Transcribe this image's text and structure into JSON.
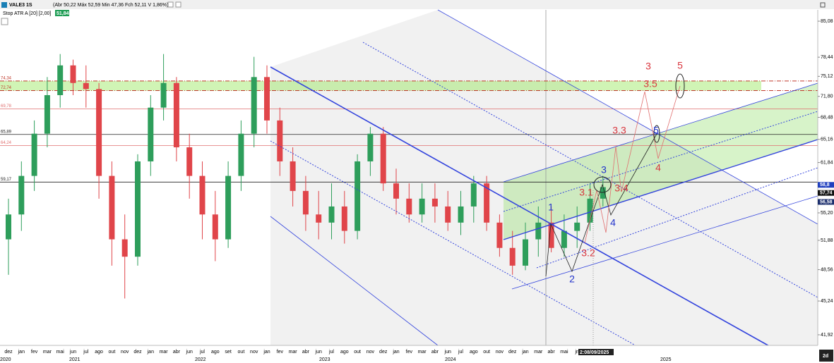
{
  "header": {
    "symbol": "VALE3 1S",
    "quote": "(Abr 50,22 Máx 52,59 Min 47,36 Fch 52,11 V 1,86%)",
    "indicator": "Stop ATR A [20] [2,00]",
    "indicator_value": "51,84",
    "cursor_date": "2:08/09/2025",
    "timeframe": "2d"
  },
  "chart_data": {
    "type": "candlestick",
    "log": true,
    "up_color": "#2e9e5b",
    "down_color": "#e0454a",
    "categories": [
      "dez",
      "jan",
      "fev",
      "mar",
      "mai",
      "jun",
      "jul",
      "ago",
      "out",
      "nov",
      "dez",
      "jan",
      "mar",
      "abr",
      "jun",
      "jul",
      "ago",
      "set",
      "out",
      "nov",
      "jan",
      "fev",
      "mar",
      "abr",
      "jun",
      "jul",
      "ago",
      "out",
      "nov",
      "dez",
      "jan",
      "fev",
      "mar",
      "abr",
      "jun",
      "jul",
      "ago",
      "out",
      "nov",
      "dez",
      "jan",
      "mar",
      "abr",
      "mai",
      "jn",
      null,
      null
    ],
    "years": [
      "2020",
      "2021",
      "2022",
      "2023",
      "2024",
      "2025"
    ],
    "open": [
      52,
      55,
      60,
      66,
      72,
      77,
      74,
      73,
      60,
      52,
      50,
      62,
      70,
      74,
      64,
      60,
      55,
      52,
      60,
      66,
      75,
      68,
      62,
      58,
      55,
      54,
      56,
      53,
      62,
      66,
      59,
      57,
      55,
      57,
      56,
      54,
      56,
      59,
      54,
      51,
      49,
      52,
      54,
      51,
      53,
      54,
      57
    ],
    "high": [
      57,
      62,
      68,
      75,
      79,
      78,
      77,
      74,
      62,
      55,
      63,
      72,
      79,
      75,
      66,
      62,
      58,
      62,
      68,
      78.5,
      77,
      70,
      64,
      60,
      58,
      59,
      58,
      63,
      67,
      67,
      61,
      59,
      59,
      59,
      58,
      58,
      60,
      60,
      55,
      53,
      54,
      56,
      56,
      55,
      56,
      59,
      60
    ],
    "low": [
      48,
      53,
      58,
      64,
      70,
      72,
      70,
      57,
      49,
      45.5,
      49,
      60,
      68,
      62,
      57,
      52,
      49.5,
      51,
      58,
      64,
      66,
      60,
      56,
      53,
      52,
      52,
      51.5,
      52,
      60,
      58,
      55,
      54,
      54,
      54,
      53,
      52.5,
      54,
      53,
      50,
      48,
      48.5,
      50,
      50.5,
      50,
      51,
      53,
      56
    ],
    "close": [
      55,
      60,
      66,
      72,
      77,
      74,
      73,
      60,
      52,
      50,
      62,
      70,
      74,
      64,
      60,
      55,
      52,
      60,
      66,
      75,
      68,
      62,
      58,
      55,
      54,
      56,
      53,
      62,
      66,
      59,
      57,
      55,
      57,
      56,
      54,
      56,
      59,
      54,
      51,
      49,
      52,
      54,
      51,
      53,
      54,
      57,
      58.5
    ],
    "ylim": [
      40.93,
      87.28
    ],
    "yticks": [
      {
        "value": 85.08,
        "label": "85,08"
      },
      {
        "value": 78.44,
        "label": "78,44"
      },
      {
        "value": 75.12,
        "label": "75,12"
      },
      {
        "value": 71.8,
        "label": "71,80"
      },
      {
        "value": 68.48,
        "label": "68,48"
      },
      {
        "value": 65.16,
        "label": "65,16"
      },
      {
        "value": 61.84,
        "label": "61,84"
      },
      {
        "value": 55.2,
        "label": "55,20"
      },
      {
        "value": 51.88,
        "label": "51,88"
      },
      {
        "value": 48.56,
        "label": "48,56"
      },
      {
        "value": 45.24,
        "label": "45,24"
      },
      {
        "value": 41.92,
        "label": "41,92"
      }
    ],
    "levels": [
      {
        "value": 74.34,
        "label": "74,34",
        "color": "#c0392b"
      },
      {
        "value": 72.74,
        "label": "72,74",
        "color": "#c0392b"
      },
      {
        "value": 69.78,
        "label": "69,78",
        "color": "#e07070"
      },
      {
        "value": 65.89,
        "label": "65,89",
        "color": "#222222"
      },
      {
        "value": 64.24,
        "label": "64,24",
        "color": "#e07070"
      },
      {
        "value": 59.17,
        "label": "59,17",
        "color": "#222222"
      }
    ],
    "price_markers": [
      {
        "value": 58.8,
        "label": "58,8",
        "color": "#1f3fbf"
      },
      {
        "value": 57.74,
        "label": "57,74",
        "color": "#111111"
      },
      {
        "value": 56.58,
        "label": "56,58",
        "color": "#1c2f6e"
      }
    ],
    "annotations": [
      {
        "text": "1",
        "color": "#2233cc"
      },
      {
        "text": "2",
        "color": "#2233cc"
      },
      {
        "text": "3",
        "color": "#2233cc"
      },
      {
        "text": "4",
        "color": "#2233cc"
      },
      {
        "text": "5",
        "color": "#2233cc"
      },
      {
        "text": "3",
        "color": "#d9363e"
      },
      {
        "text": "5",
        "color": "#d9363e"
      },
      {
        "text": "3.5",
        "color": "#d9363e"
      },
      {
        "text": "3.3",
        "color": "#d9363e"
      },
      {
        "text": "3.1",
        "color": "#d9363e"
      },
      {
        "text": "3.4",
        "color": "#d9363e"
      },
      {
        "text": "3.2",
        "color": "#d9363e"
      },
      {
        "text": "4",
        "color": "#d9363e"
      }
    ]
  }
}
